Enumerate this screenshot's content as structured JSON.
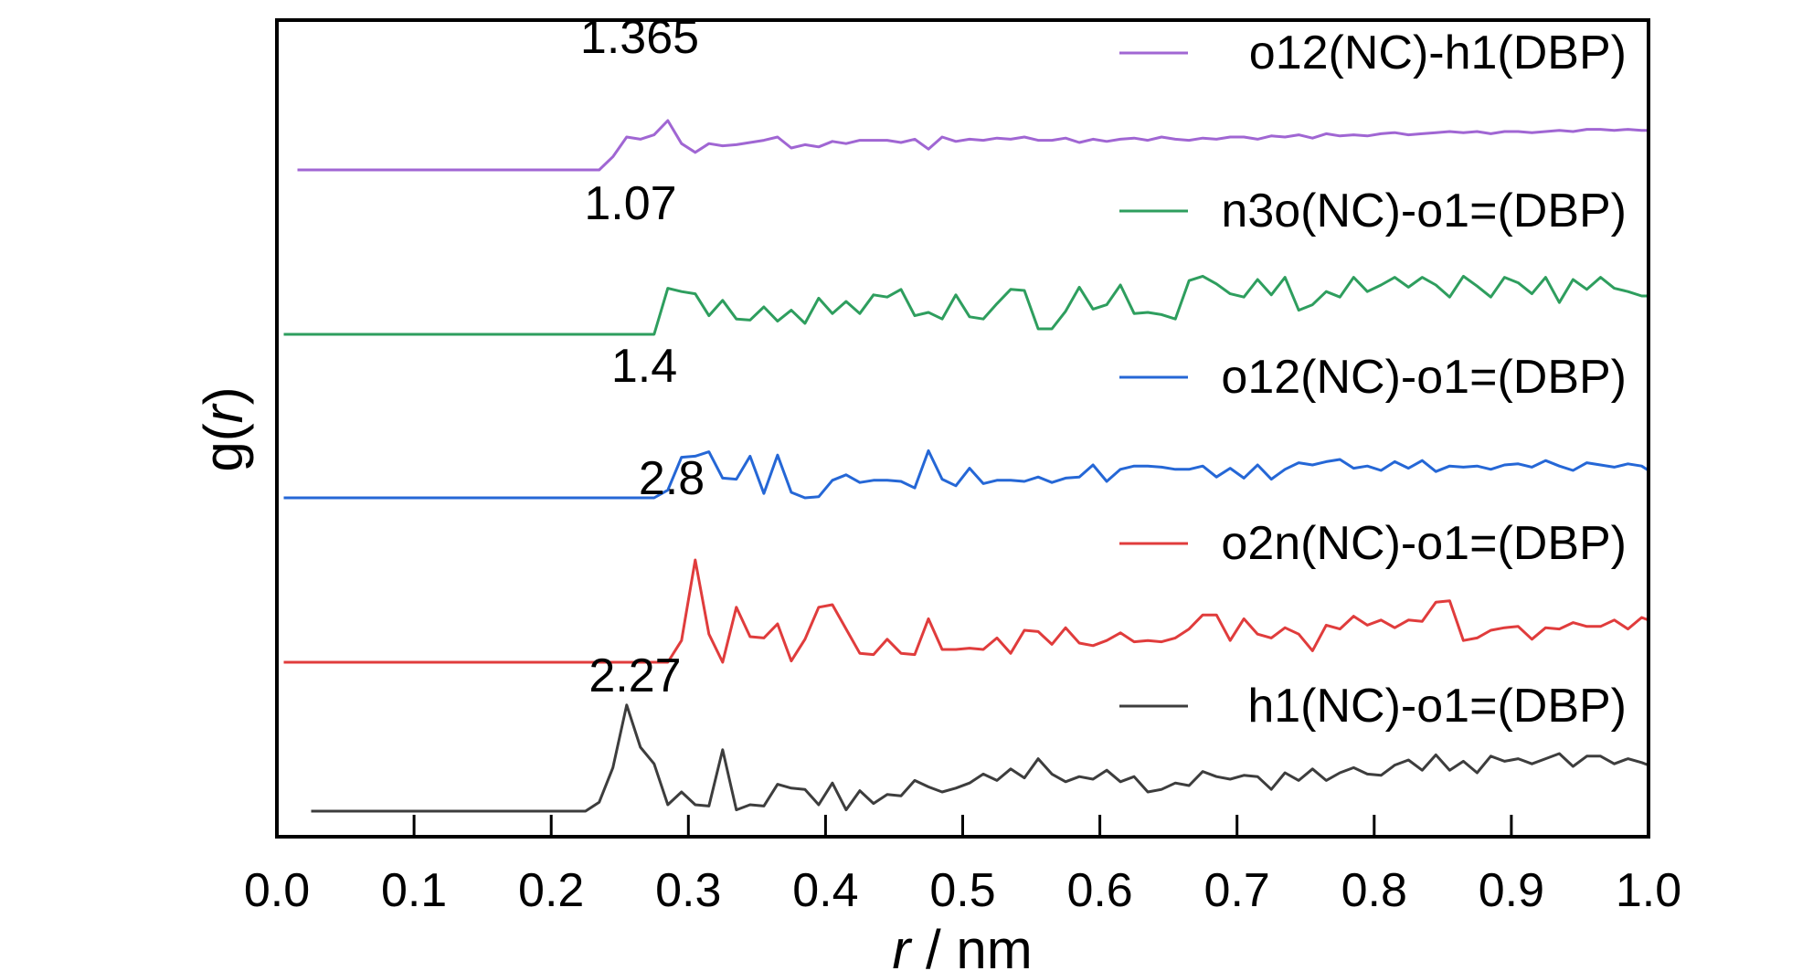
{
  "chart_data": {
    "type": "line",
    "xlabel_italic": "r",
    "xlabel_rest": " / nm",
    "ylabel_prefix": "g(",
    "ylabel_italic": "r",
    "ylabel_suffix": ")",
    "xlim": [
      0.0,
      1.0
    ],
    "x_ticks": [
      "0.0",
      "0.1",
      "0.2",
      "0.3",
      "0.4",
      "0.5",
      "0.6",
      "0.7",
      "0.8",
      "0.9",
      "1.0"
    ],
    "y_ticks_shown": false,
    "grid": false,
    "legend_placement": "right",
    "series": [
      {
        "name": "o12(NC)-h1(DBP)",
        "color": "#a066d3",
        "peak_label": "1.365",
        "x": [
          0.015,
          0.235,
          0.245,
          0.255,
          0.265,
          0.275,
          0.285,
          0.295,
          0.305,
          0.315,
          0.325,
          0.335,
          0.345,
          0.355,
          0.365,
          0.375,
          0.385,
          0.395,
          0.405,
          0.415,
          0.425,
          0.435,
          0.445,
          0.455,
          0.465,
          0.475,
          0.485,
          0.495,
          0.505,
          0.515,
          0.525,
          0.535,
          0.545,
          0.555,
          0.565,
          0.575,
          0.585,
          0.595,
          0.605,
          0.615,
          0.625,
          0.635,
          0.645,
          0.655,
          0.665,
          0.675,
          0.685,
          0.695,
          0.705,
          0.715,
          0.725,
          0.735,
          0.745,
          0.755,
          0.765,
          0.775,
          0.785,
          0.795,
          0.805,
          0.815,
          0.825,
          0.835,
          0.845,
          0.855,
          0.865,
          0.875,
          0.885,
          0.895,
          0.905,
          0.915,
          0.925,
          0.935,
          0.945,
          0.955,
          0.965,
          0.975,
          0.985,
          0.995,
          1.0
        ],
        "y": [
          0.0,
          0.0,
          0.12,
          0.3,
          0.28,
          0.32,
          0.45,
          0.24,
          0.16,
          0.24,
          0.22,
          0.23,
          0.25,
          0.27,
          0.3,
          0.2,
          0.23,
          0.21,
          0.26,
          0.24,
          0.27,
          0.27,
          0.27,
          0.25,
          0.28,
          0.19,
          0.3,
          0.26,
          0.28,
          0.27,
          0.29,
          0.28,
          0.3,
          0.27,
          0.27,
          0.29,
          0.25,
          0.28,
          0.26,
          0.28,
          0.29,
          0.27,
          0.3,
          0.28,
          0.27,
          0.29,
          0.28,
          0.3,
          0.3,
          0.28,
          0.31,
          0.3,
          0.32,
          0.29,
          0.33,
          0.31,
          0.32,
          0.31,
          0.33,
          0.34,
          0.32,
          0.33,
          0.34,
          0.35,
          0.34,
          0.35,
          0.33,
          0.35,
          0.35,
          0.34,
          0.35,
          0.36,
          0.35,
          0.37,
          0.37,
          0.36,
          0.37,
          0.36,
          0.36
        ]
      },
      {
        "name": "n3o(NC)-o1=(DBP)",
        "color": "#2e9e5e",
        "peak_label": "1.07",
        "x": [
          0.005,
          0.275,
          0.285,
          0.295,
          0.305,
          0.315,
          0.325,
          0.335,
          0.345,
          0.355,
          0.365,
          0.375,
          0.385,
          0.395,
          0.405,
          0.415,
          0.425,
          0.435,
          0.445,
          0.455,
          0.465,
          0.475,
          0.485,
          0.495,
          0.505,
          0.515,
          0.525,
          0.535,
          0.545,
          0.555,
          0.565,
          0.575,
          0.585,
          0.595,
          0.605,
          0.615,
          0.625,
          0.635,
          0.645,
          0.655,
          0.665,
          0.675,
          0.685,
          0.695,
          0.705,
          0.715,
          0.725,
          0.735,
          0.745,
          0.755,
          0.765,
          0.775,
          0.785,
          0.795,
          0.805,
          0.815,
          0.825,
          0.835,
          0.845,
          0.855,
          0.865,
          0.875,
          0.885,
          0.895,
          0.905,
          0.915,
          0.925,
          0.935,
          0.945,
          0.955,
          0.965,
          0.975,
          0.985,
          0.995,
          1.0
        ],
        "y": [
          0.0,
          0.0,
          0.42,
          0.39,
          0.37,
          0.17,
          0.31,
          0.14,
          0.13,
          0.25,
          0.12,
          0.22,
          0.1,
          0.33,
          0.19,
          0.3,
          0.19,
          0.36,
          0.34,
          0.41,
          0.17,
          0.2,
          0.14,
          0.36,
          0.16,
          0.14,
          0.28,
          0.41,
          0.4,
          0.05,
          0.05,
          0.21,
          0.43,
          0.23,
          0.27,
          0.45,
          0.19,
          0.2,
          0.18,
          0.14,
          0.49,
          0.53,
          0.46,
          0.37,
          0.34,
          0.5,
          0.36,
          0.52,
          0.22,
          0.27,
          0.39,
          0.34,
          0.52,
          0.39,
          0.45,
          0.52,
          0.43,
          0.52,
          0.45,
          0.34,
          0.53,
          0.44,
          0.34,
          0.52,
          0.47,
          0.37,
          0.52,
          0.29,
          0.5,
          0.41,
          0.52,
          0.42,
          0.39,
          0.35,
          0.35
        ]
      },
      {
        "name": "o12(NC)-o1=(DBP)",
        "color": "#2567d6",
        "peak_label": "1.4",
        "x": [
          0.005,
          0.275,
          0.285,
          0.295,
          0.305,
          0.315,
          0.325,
          0.335,
          0.345,
          0.355,
          0.365,
          0.375,
          0.385,
          0.395,
          0.405,
          0.415,
          0.425,
          0.435,
          0.445,
          0.455,
          0.465,
          0.475,
          0.485,
          0.495,
          0.505,
          0.515,
          0.525,
          0.535,
          0.545,
          0.555,
          0.565,
          0.575,
          0.585,
          0.595,
          0.605,
          0.615,
          0.625,
          0.635,
          0.645,
          0.655,
          0.665,
          0.675,
          0.685,
          0.695,
          0.705,
          0.715,
          0.725,
          0.735,
          0.745,
          0.755,
          0.765,
          0.775,
          0.785,
          0.795,
          0.805,
          0.815,
          0.825,
          0.835,
          0.845,
          0.855,
          0.865,
          0.875,
          0.885,
          0.895,
          0.905,
          0.915,
          0.925,
          0.935,
          0.945,
          0.955,
          0.965,
          0.975,
          0.985,
          0.995,
          1.0
        ],
        "y": [
          0.0,
          0.0,
          0.07,
          0.37,
          0.38,
          0.42,
          0.18,
          0.17,
          0.38,
          0.04,
          0.39,
          0.05,
          0.0,
          0.01,
          0.16,
          0.21,
          0.14,
          0.16,
          0.16,
          0.15,
          0.09,
          0.43,
          0.17,
          0.11,
          0.27,
          0.13,
          0.16,
          0.16,
          0.15,
          0.19,
          0.14,
          0.18,
          0.19,
          0.3,
          0.15,
          0.26,
          0.29,
          0.29,
          0.28,
          0.26,
          0.26,
          0.29,
          0.19,
          0.27,
          0.18,
          0.3,
          0.17,
          0.26,
          0.32,
          0.3,
          0.33,
          0.35,
          0.27,
          0.29,
          0.25,
          0.33,
          0.27,
          0.34,
          0.24,
          0.29,
          0.28,
          0.29,
          0.26,
          0.3,
          0.31,
          0.28,
          0.34,
          0.29,
          0.25,
          0.32,
          0.3,
          0.28,
          0.31,
          0.29,
          0.25
        ]
      },
      {
        "name": "o2n(NC)-o1=(DBP)",
        "color": "#e03c3c",
        "peak_label": "2.8",
        "x": [
          0.005,
          0.285,
          0.295,
          0.305,
          0.315,
          0.325,
          0.335,
          0.345,
          0.355,
          0.365,
          0.375,
          0.385,
          0.395,
          0.405,
          0.415,
          0.425,
          0.435,
          0.445,
          0.455,
          0.465,
          0.475,
          0.485,
          0.495,
          0.505,
          0.515,
          0.525,
          0.535,
          0.545,
          0.555,
          0.565,
          0.575,
          0.585,
          0.595,
          0.605,
          0.615,
          0.625,
          0.635,
          0.645,
          0.655,
          0.665,
          0.675,
          0.685,
          0.695,
          0.705,
          0.715,
          0.725,
          0.735,
          0.745,
          0.755,
          0.765,
          0.775,
          0.785,
          0.795,
          0.805,
          0.815,
          0.825,
          0.835,
          0.845,
          0.855,
          0.865,
          0.875,
          0.885,
          0.895,
          0.905,
          0.915,
          0.925,
          0.935,
          0.945,
          0.955,
          0.965,
          0.975,
          0.985,
          0.995,
          1.0
        ],
        "y": [
          0.0,
          0.0,
          0.17,
          0.8,
          0.22,
          0.0,
          0.43,
          0.2,
          0.19,
          0.3,
          0.01,
          0.18,
          0.43,
          0.45,
          0.26,
          0.07,
          0.06,
          0.18,
          0.07,
          0.06,
          0.34,
          0.1,
          0.1,
          0.11,
          0.1,
          0.19,
          0.07,
          0.25,
          0.24,
          0.14,
          0.27,
          0.15,
          0.13,
          0.17,
          0.23,
          0.16,
          0.17,
          0.16,
          0.19,
          0.26,
          0.37,
          0.37,
          0.17,
          0.34,
          0.22,
          0.19,
          0.27,
          0.22,
          0.09,
          0.29,
          0.26,
          0.36,
          0.29,
          0.33,
          0.27,
          0.33,
          0.32,
          0.47,
          0.48,
          0.17,
          0.19,
          0.25,
          0.27,
          0.28,
          0.18,
          0.27,
          0.26,
          0.31,
          0.28,
          0.28,
          0.33,
          0.26,
          0.35,
          0.33
        ]
      },
      {
        "name": "h1(NC)-o1=(DBP)",
        "color": "#3d3d3d",
        "peak_label": "2.27",
        "x": [
          0.025,
          0.225,
          0.235,
          0.245,
          0.255,
          0.265,
          0.275,
          0.285,
          0.295,
          0.305,
          0.315,
          0.325,
          0.335,
          0.345,
          0.355,
          0.365,
          0.375,
          0.385,
          0.395,
          0.405,
          0.415,
          0.425,
          0.435,
          0.445,
          0.455,
          0.465,
          0.475,
          0.485,
          0.495,
          0.505,
          0.515,
          0.525,
          0.535,
          0.545,
          0.555,
          0.565,
          0.575,
          0.585,
          0.595,
          0.605,
          0.615,
          0.625,
          0.635,
          0.645,
          0.655,
          0.665,
          0.675,
          0.685,
          0.695,
          0.705,
          0.715,
          0.725,
          0.735,
          0.745,
          0.755,
          0.765,
          0.775,
          0.785,
          0.795,
          0.805,
          0.815,
          0.825,
          0.835,
          0.845,
          0.855,
          0.865,
          0.875,
          0.885,
          0.895,
          0.905,
          0.915,
          0.925,
          0.935,
          0.945,
          0.955,
          0.965,
          0.975,
          0.985,
          0.995,
          1.0
        ],
        "y": [
          0.0,
          0.0,
          0.07,
          0.34,
          0.83,
          0.5,
          0.37,
          0.05,
          0.15,
          0.05,
          0.04,
          0.48,
          0.01,
          0.05,
          0.04,
          0.21,
          0.18,
          0.17,
          0.05,
          0.22,
          0.01,
          0.16,
          0.06,
          0.13,
          0.12,
          0.24,
          0.19,
          0.15,
          0.18,
          0.22,
          0.29,
          0.24,
          0.33,
          0.26,
          0.41,
          0.29,
          0.23,
          0.27,
          0.25,
          0.32,
          0.23,
          0.27,
          0.15,
          0.17,
          0.22,
          0.2,
          0.31,
          0.27,
          0.25,
          0.28,
          0.27,
          0.17,
          0.3,
          0.24,
          0.33,
          0.24,
          0.3,
          0.34,
          0.29,
          0.28,
          0.36,
          0.4,
          0.32,
          0.44,
          0.32,
          0.39,
          0.3,
          0.43,
          0.39,
          0.41,
          0.37,
          0.41,
          0.45,
          0.35,
          0.43,
          0.43,
          0.37,
          0.41,
          0.38,
          0.36
        ]
      }
    ]
  }
}
